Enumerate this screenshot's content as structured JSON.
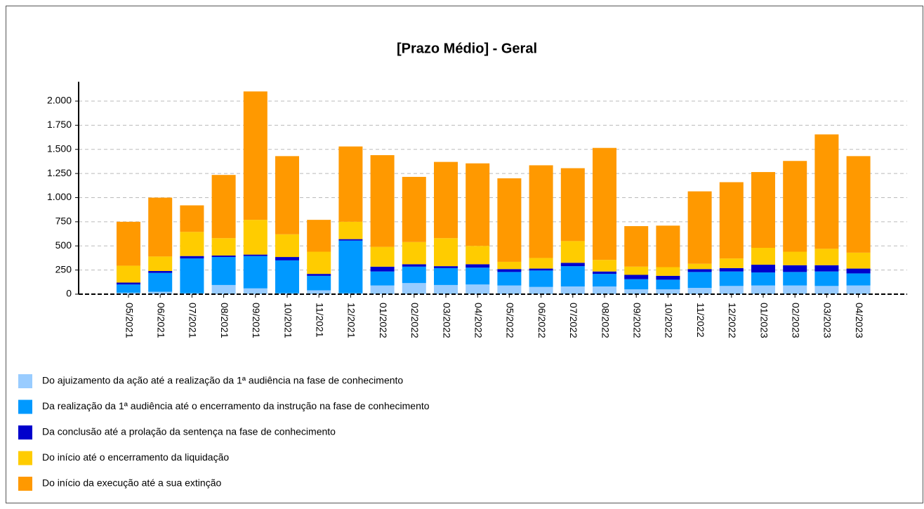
{
  "chart_data": {
    "type": "stacked_bar",
    "title": "[Prazo Médio]  - Geral",
    "categories": [
      "05/2021",
      "06/2021",
      "07/2021",
      "08/2021",
      "09/2021",
      "10/2021",
      "11/2021",
      "12/2021",
      "01/2022",
      "02/2022",
      "03/2022",
      "04/2022",
      "05/2022",
      "06/2022",
      "07/2022",
      "08/2022",
      "09/2022",
      "10/2022",
      "11/2022",
      "12/2022",
      "01/2023",
      "02/2023",
      "03/2023",
      "04/2023"
    ],
    "series": [
      {
        "name": "Do ajuizamento da ação até a realização da 1ª audiência na fase de conhecimento",
        "color": "#99ccff",
        "values": [
          15,
          25,
          10,
          95,
          60,
          10,
          40,
          10,
          90,
          115,
          95,
          100,
          90,
          75,
          80,
          80,
          50,
          50,
          65,
          85,
          90,
          90,
          85,
          90
        ]
      },
      {
        "name": "Da realização da 1ª audiência até o encerramento da instrução na fase de conhecimento",
        "color": "#0099ff",
        "values": [
          85,
          195,
          360,
          290,
          335,
          340,
          150,
          545,
          145,
          170,
          175,
          175,
          140,
          170,
          210,
          130,
          105,
          100,
          165,
          150,
          135,
          140,
          150,
          125
        ]
      },
      {
        "name": "Da conclusão até a prolação da sentença na fase de conhecimento",
        "color": "#0000cc",
        "values": [
          20,
          20,
          25,
          15,
          15,
          35,
          20,
          15,
          50,
          25,
          20,
          35,
          30,
          20,
          35,
          25,
          45,
          40,
          30,
          35,
          80,
          70,
          65,
          50
        ]
      },
      {
        "name": "Do início até o encerramento da liquidação",
        "color": "#ffcc00",
        "values": [
          175,
          150,
          250,
          180,
          360,
          235,
          230,
          180,
          205,
          230,
          290,
          190,
          75,
          110,
          225,
          120,
          85,
          90,
          55,
          100,
          175,
          140,
          170,
          165
        ]
      },
      {
        "name": "Do início da execução até a sua extinção",
        "color": "#ff9900",
        "values": [
          455,
          610,
          275,
          655,
          1330,
          810,
          330,
          780,
          950,
          675,
          790,
          855,
          865,
          960,
          755,
          1160,
          420,
          430,
          750,
          790,
          785,
          940,
          1185,
          1000
        ]
      }
    ],
    "ylim": [
      0,
      2200
    ],
    "yticks": [
      0,
      250,
      500,
      750,
      {
        "value": 1000,
        "label": "1.000"
      },
      {
        "value": 1250,
        "label": "1.250"
      },
      {
        "value": 1500,
        "label": "1.500"
      },
      {
        "value": 1750,
        "label": "1.750"
      },
      {
        "value": 2000,
        "label": "2.000"
      }
    ],
    "grid": true
  }
}
